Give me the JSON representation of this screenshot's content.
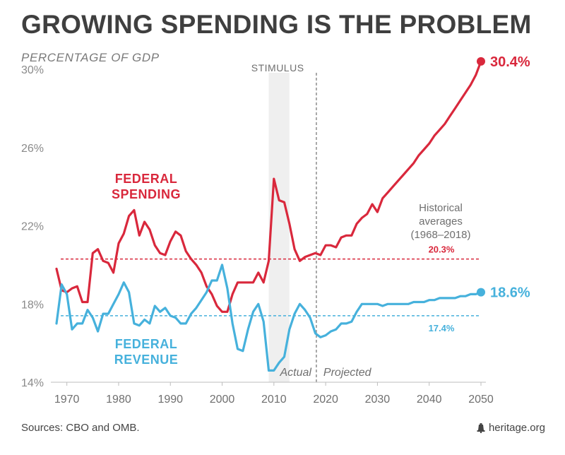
{
  "title": "GROWING SPENDING IS THE PROBLEM",
  "subtitle": "PERCENTAGE OF GDP",
  "sources": "Sources: CBO and OMB.",
  "brand": "heritage.org",
  "brand_icon": "liberty-bell-icon",
  "chart_data": {
    "type": "line",
    "xlim": [
      1968,
      2050
    ],
    "ylim": [
      14,
      30
    ],
    "x_ticks": [
      {
        "value": 1970,
        "label": "1970"
      },
      {
        "value": 1980,
        "label": "1980"
      },
      {
        "value": 1990,
        "label": "1990"
      },
      {
        "value": 2000,
        "label": "2000"
      },
      {
        "value": 2010,
        "label": "2010"
      },
      {
        "value": 2020,
        "label": "2020"
      },
      {
        "value": 2030,
        "label": "2030"
      },
      {
        "value": 2040,
        "label": "2040"
      },
      {
        "value": 2050,
        "label": "2050"
      }
    ],
    "y_ticks": [
      {
        "value": 14,
        "label": "14%"
      },
      {
        "value": 18,
        "label": "18%"
      },
      {
        "value": 22,
        "label": "22%"
      },
      {
        "value": 26,
        "label": "26%"
      },
      {
        "value": 30,
        "label": "30%"
      }
    ],
    "grid": false,
    "stimulus_band": {
      "label": "STIMULUS",
      "x_start": 2009,
      "x_end": 2013
    },
    "divider": {
      "x": 2018.2,
      "left_label": "Actual",
      "right_label": "Projected"
    },
    "averages": {
      "label_lines": [
        "Historical",
        "averages",
        "(1968–2018)"
      ],
      "spending": {
        "value": 20.3,
        "label": "20.3%"
      },
      "revenue": {
        "value": 17.4,
        "label": "17.4%"
      }
    },
    "series": [
      {
        "name_lines": [
          "FEDERAL",
          "SPENDING"
        ],
        "color": "#d9283c",
        "end_label": "30.4%",
        "x": [
          1968,
          1969,
          1970,
          1971,
          1972,
          1973,
          1974,
          1975,
          1976,
          1977,
          1978,
          1979,
          1980,
          1981,
          1982,
          1983,
          1984,
          1985,
          1986,
          1987,
          1988,
          1989,
          1990,
          1991,
          1992,
          1993,
          1994,
          1995,
          1996,
          1997,
          1998,
          1999,
          2000,
          2001,
          2002,
          2003,
          2004,
          2005,
          2006,
          2007,
          2008,
          2009,
          2010,
          2011,
          2012,
          2013,
          2014,
          2015,
          2016,
          2017,
          2018,
          2019,
          2020,
          2021,
          2022,
          2023,
          2024,
          2025,
          2026,
          2027,
          2028,
          2029,
          2030,
          2031,
          2032,
          2033,
          2034,
          2035,
          2036,
          2037,
          2038,
          2039,
          2040,
          2041,
          2042,
          2043,
          2044,
          2045,
          2046,
          2047,
          2048,
          2049,
          2050
        ],
        "values": [
          19.8,
          18.7,
          18.6,
          18.8,
          18.9,
          18.1,
          18.1,
          20.6,
          20.8,
          20.2,
          20.1,
          19.6,
          21.1,
          21.6,
          22.5,
          22.8,
          21.5,
          22.2,
          21.8,
          21.0,
          20.6,
          20.5,
          21.2,
          21.7,
          21.5,
          20.7,
          20.3,
          20.0,
          19.6,
          18.9,
          18.5,
          17.9,
          17.6,
          17.6,
          18.5,
          19.1,
          19.1,
          19.1,
          19.1,
          19.6,
          19.1,
          20.2,
          24.4,
          23.3,
          23.2,
          22.1,
          20.8,
          20.2,
          20.4,
          20.5,
          20.6,
          20.5,
          21.0,
          21.0,
          20.9,
          21.4,
          21.5,
          21.5,
          22.1,
          22.4,
          22.6,
          23.1,
          22.7,
          23.4,
          23.7,
          24.0,
          24.3,
          24.6,
          24.9,
          25.2,
          25.6,
          25.9,
          26.2,
          26.6,
          26.9,
          27.2,
          27.6,
          28.0,
          28.4,
          28.8,
          29.2,
          29.7,
          30.4
        ]
      },
      {
        "name_lines": [
          "FEDERAL",
          "REVENUE"
        ],
        "color": "#46b1dc",
        "end_label": "18.6%",
        "x": [
          1968,
          1969,
          1970,
          1971,
          1972,
          1973,
          1974,
          1975,
          1976,
          1977,
          1978,
          1979,
          1980,
          1981,
          1982,
          1983,
          1984,
          1985,
          1986,
          1987,
          1988,
          1989,
          1990,
          1991,
          1992,
          1993,
          1994,
          1995,
          1996,
          1997,
          1998,
          1999,
          2000,
          2001,
          2002,
          2003,
          2004,
          2005,
          2006,
          2007,
          2008,
          2009,
          2010,
          2011,
          2012,
          2013,
          2014,
          2015,
          2016,
          2017,
          2018,
          2019,
          2020,
          2021,
          2022,
          2023,
          2024,
          2025,
          2026,
          2027,
          2028,
          2029,
          2030,
          2031,
          2032,
          2033,
          2034,
          2035,
          2036,
          2037,
          2038,
          2039,
          2040,
          2041,
          2042,
          2043,
          2044,
          2045,
          2046,
          2047,
          2048,
          2049,
          2050
        ],
        "values": [
          17.0,
          19.0,
          18.5,
          16.7,
          17.0,
          17.0,
          17.7,
          17.3,
          16.6,
          17.5,
          17.5,
          18.0,
          18.5,
          19.1,
          18.6,
          17.0,
          16.9,
          17.2,
          17.0,
          17.9,
          17.6,
          17.8,
          17.4,
          17.3,
          17.0,
          17.0,
          17.5,
          17.8,
          18.2,
          18.6,
          19.2,
          19.2,
          20.0,
          18.8,
          17.0,
          15.7,
          15.6,
          16.7,
          17.6,
          18.0,
          17.1,
          14.6,
          14.6,
          15.0,
          15.3,
          16.7,
          17.5,
          18.0,
          17.7,
          17.3,
          16.5,
          16.3,
          16.4,
          16.6,
          16.7,
          17.0,
          17.0,
          17.1,
          17.6,
          18.0,
          18.0,
          18.0,
          18.0,
          17.9,
          18.0,
          18.0,
          18.0,
          18.0,
          18.0,
          18.1,
          18.1,
          18.1,
          18.2,
          18.2,
          18.3,
          18.3,
          18.3,
          18.3,
          18.4,
          18.4,
          18.5,
          18.5,
          18.6
        ]
      }
    ]
  }
}
